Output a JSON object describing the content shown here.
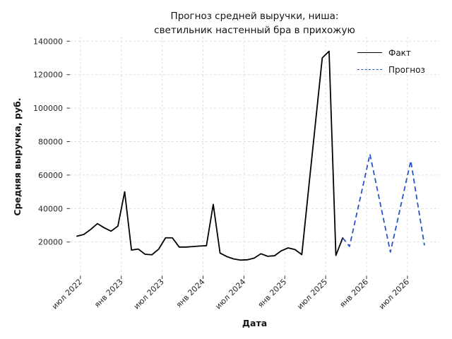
{
  "chart_data": {
    "type": "line",
    "title_lines": [
      "Прогноз средней выручки, ниша:",
      "светильник настенный бра в прихожую"
    ],
    "title": "Прогноз средней выручки, ниша:\nсветильник настенный бра в прихожую",
    "xlabel": "Дата",
    "ylabel": "Средняя выручка, руб.",
    "grid": true,
    "legend_position": "upper right",
    "ylim": [
      0,
      142000
    ],
    "yticks": [
      20000,
      40000,
      60000,
      80000,
      100000,
      120000,
      140000
    ],
    "xticks": [
      "июл 2022",
      "янв 2023",
      "июл 2023",
      "янв 2024",
      "июл 2024",
      "янв 2025",
      "июл 2025",
      "янв 2026",
      "июл 2026"
    ],
    "series": [
      {
        "name": "Факт",
        "style": "solid",
        "color": "#000000",
        "x": [
          "июн 2022",
          "июл 2022",
          "авг 2022",
          "сен 2022",
          "окт 2022",
          "ноя 2022",
          "дек 2022",
          "янв 2023",
          "фев 2023",
          "мар 2023",
          "апр 2023",
          "май 2023",
          "июн 2023",
          "июл 2023",
          "авг 2023",
          "сен 2023",
          "окт 2023",
          "ноя 2023",
          "дек 2023",
          "янв 2024",
          "фев 2024",
          "мар 2024",
          "апр 2024",
          "май 2024",
          "июн 2024",
          "июл 2024",
          "авг 2024",
          "сен 2024",
          "окт 2024",
          "ноя 2024",
          "дек 2024",
          "янв 2025",
          "фев 2025",
          "мар 2025",
          "апр 2025",
          "май 2025",
          "июн 2025",
          "июл 2025",
          "авг 2025",
          "сен 2025"
        ],
        "values": [
          23500,
          24500,
          27500,
          31000,
          28500,
          26500,
          29500,
          50000,
          15200,
          15800,
          12700,
          12400,
          15800,
          22500,
          22500,
          17000,
          17000,
          17300,
          17600,
          17800,
          42500,
          13400,
          11300,
          9900,
          9200,
          9400,
          10400,
          13000,
          11500,
          11800,
          14800,
          16500,
          15500,
          12500,
          52000,
          91000,
          130000,
          134000,
          12000,
          22500
        ]
      },
      {
        "name": "Прогноз",
        "style": "dashed",
        "color": "#2a55c8",
        "x": [
          "окт 2025",
          "ноя 2025",
          "дек 2025",
          "янв 2026",
          "фев 2026",
          "мар 2026",
          "апр 2026",
          "май 2026",
          "июн 2026",
          "июл 2026",
          "авг 2026",
          "сен 2026"
        ],
        "values": [
          17400,
          35800,
          54000,
          72500,
          53000,
          33500,
          14000,
          32000,
          50500,
          68500,
          43000,
          18000
        ]
      }
    ],
    "colors": {
      "fact": "#000000",
      "forecast": "#2a55c8",
      "grid": "#dcdcdc",
      "tick_mark": "#333333",
      "tick_text": "#262626",
      "text": "#141414"
    }
  }
}
